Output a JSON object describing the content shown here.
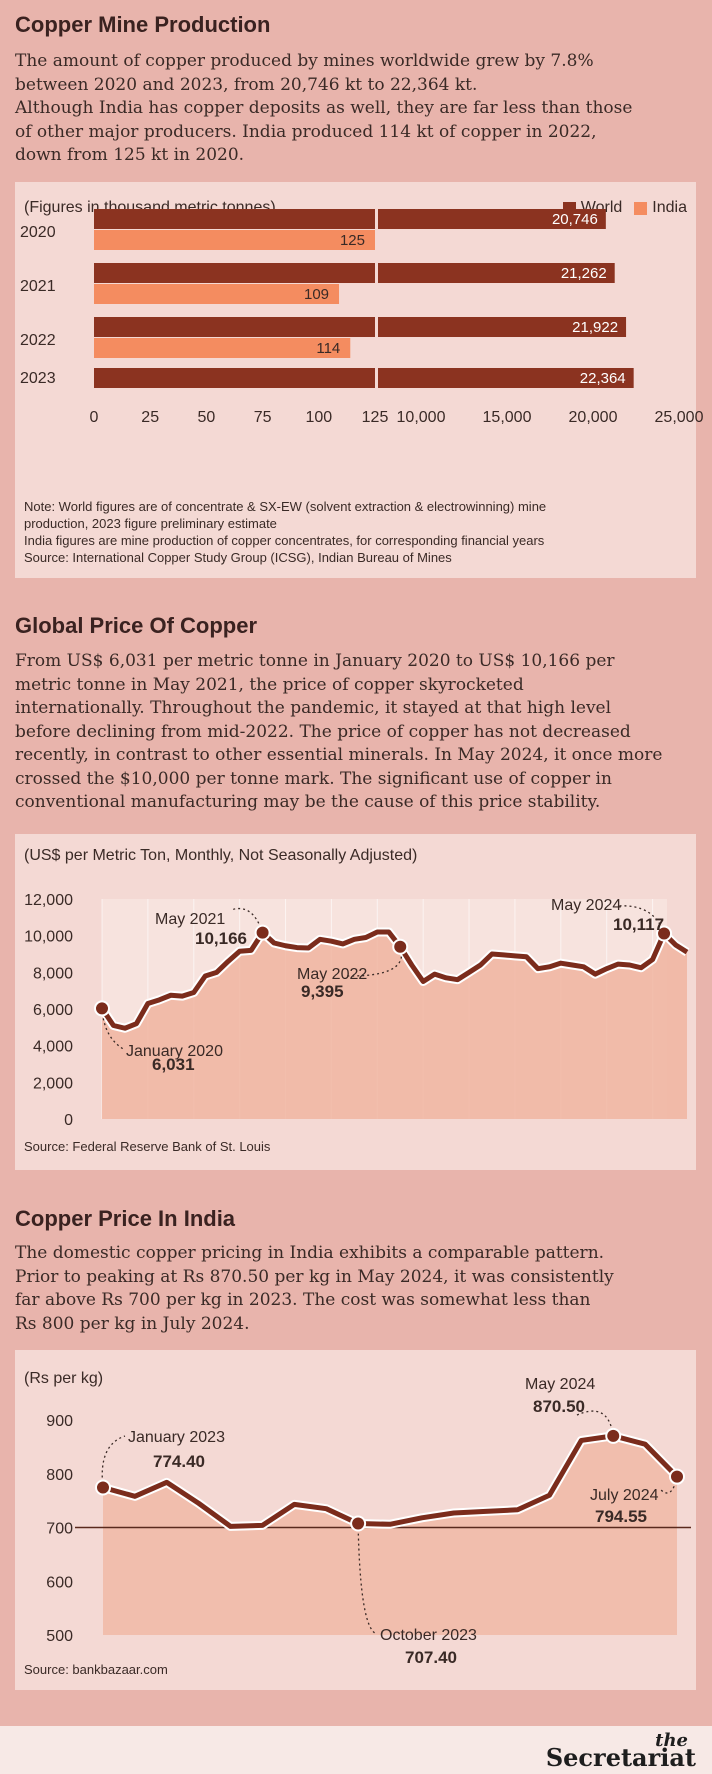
{
  "colors": {
    "world": "#8b3320",
    "india": "#f48c60",
    "line": "#7b2c1c",
    "area": "#f0b4a0",
    "background": "#e8b4ac",
    "panel": "#f4d9d4"
  },
  "section1": {
    "title": "Copper Mine Production",
    "desc": [
      "The amount of copper produced by mines worldwide grew by 7.8%",
      "between 2020 and 2023, from 20,746 kt to 22,364 kt.",
      "Although India has copper deposits as well, they are far less than those",
      "of other major producers. India produced 114 kt of copper in 2022,",
      "down from 125 kt in 2020."
    ],
    "subtitle": "(Figures in thousand metric tonnes)",
    "legend": [
      "World",
      "India"
    ],
    "notes": [
      "Note: World figures are of concentrate & SX-EW (solvent extraction & electrowinning) mine",
      "production, 2023 figure preliminary estimate",
      "India figures are mine production of copper concentrates, for corresponding financial years",
      "Source: International Copper Study Group (ICSG), Indian Bureau of Mines"
    ]
  },
  "section2": {
    "title": "Global Price Of Copper",
    "desc": [
      "From US$ 6,031 per metric tonne in January 2020 to US$ 10,166 per",
      "metric tonne in May 2021, the price of copper skyrocketed",
      "internationally. Throughout the pandemic, it stayed at that high level",
      "before declining from mid-2022. The price of copper has not decreased",
      "recently, in contrast to other essential minerals. In May 2024, it once more",
      "crossed the $10,000 per tonne mark. The significant use of copper in",
      "conventional manufacturing may be the cause of this price stability."
    ],
    "subtitle": "(US$ per Metric Ton, Monthly, Not Seasonally Adjusted)",
    "source": "Source: Federal Reserve Bank of St. Louis"
  },
  "section3": {
    "title": "Copper Price In India",
    "desc": [
      "The domestic copper pricing in India exhibits a comparable pattern.",
      "Prior to peaking at Rs 870.50 per kg in May 2024, it was consistently",
      "far above Rs 700 per kg in 2023. The cost was somewhat less than",
      "Rs 800 per kg in July 2024."
    ],
    "subtitle": "(Rs per kg)",
    "source": "Source: bankbazaar.com"
  },
  "brand": {
    "the": "the",
    "name": "Secretariat"
  },
  "chart_data": [
    {
      "type": "bar",
      "categories": [
        "2020",
        "2021",
        "2022",
        "2023"
      ],
      "series": [
        {
          "name": "World",
          "values": [
            20746,
            21262,
            21922,
            22364
          ],
          "labels": [
            "20,746",
            "21,262",
            "21,922",
            "22,364"
          ]
        },
        {
          "name": "India",
          "values": [
            125,
            109,
            114,
            null
          ],
          "labels": [
            "125",
            "109",
            "114",
            ""
          ]
        }
      ],
      "axis_left": {
        "ticks": [
          "0",
          "25",
          "50",
          "75",
          "100",
          "125"
        ],
        "range": [
          0,
          125
        ]
      },
      "axis_right": {
        "ticks": [
          "10,000",
          "15,000",
          "20,000",
          "25,000"
        ],
        "range": [
          7500,
          25000
        ]
      },
      "legend": "top-right"
    },
    {
      "type": "area",
      "yticks": [
        "0",
        "2,000",
        "4,000",
        "6,000",
        "8,000",
        "10,000",
        "12,000"
      ],
      "ylim": [
        0,
        12000
      ],
      "values": [
        6031,
        5100,
        4950,
        5200,
        6300,
        6500,
        6750,
        6700,
        6900,
        7800,
        8000,
        8600,
        9150,
        9200,
        10166,
        9600,
        9450,
        9350,
        9330,
        9800,
        9700,
        9550,
        9800,
        9900,
        10200,
        10200,
        9395,
        8400,
        7500,
        7900,
        7700,
        7600,
        8000,
        8400,
        9000,
        8950,
        8900,
        8850,
        8200,
        8300,
        8500,
        8400,
        8300,
        7900,
        8200,
        8450,
        8400,
        8250,
        8700,
        10117,
        9500,
        9100
      ],
      "annotations": [
        {
          "label": "January 2020",
          "value": "6,031",
          "index": 0
        },
        {
          "label": "May 2021",
          "value": "10,166",
          "index": 14
        },
        {
          "label": "May 2022",
          "value": "9,395",
          "index": 26
        },
        {
          "label": "May 2024",
          "value": "10,117",
          "index": 49
        }
      ]
    },
    {
      "type": "line",
      "yticks": [
        "500",
        "600",
        "700",
        "800",
        "900"
      ],
      "ylim": [
        500,
        900
      ],
      "values": [
        774.4,
        758,
        784,
        745,
        702,
        704,
        743,
        735,
        707.4,
        706,
        718,
        727,
        730,
        733,
        760,
        862,
        870.5,
        855,
        794.55
      ],
      "annotations": [
        {
          "label": "January 2023",
          "value": "774.40",
          "index": 0
        },
        {
          "label": "October 2023",
          "value": "707.40",
          "index": 8
        },
        {
          "label": "May 2024",
          "value": "870.50",
          "index": 16
        },
        {
          "label": "July 2024",
          "value": "794.55",
          "index": 18
        }
      ]
    }
  ]
}
